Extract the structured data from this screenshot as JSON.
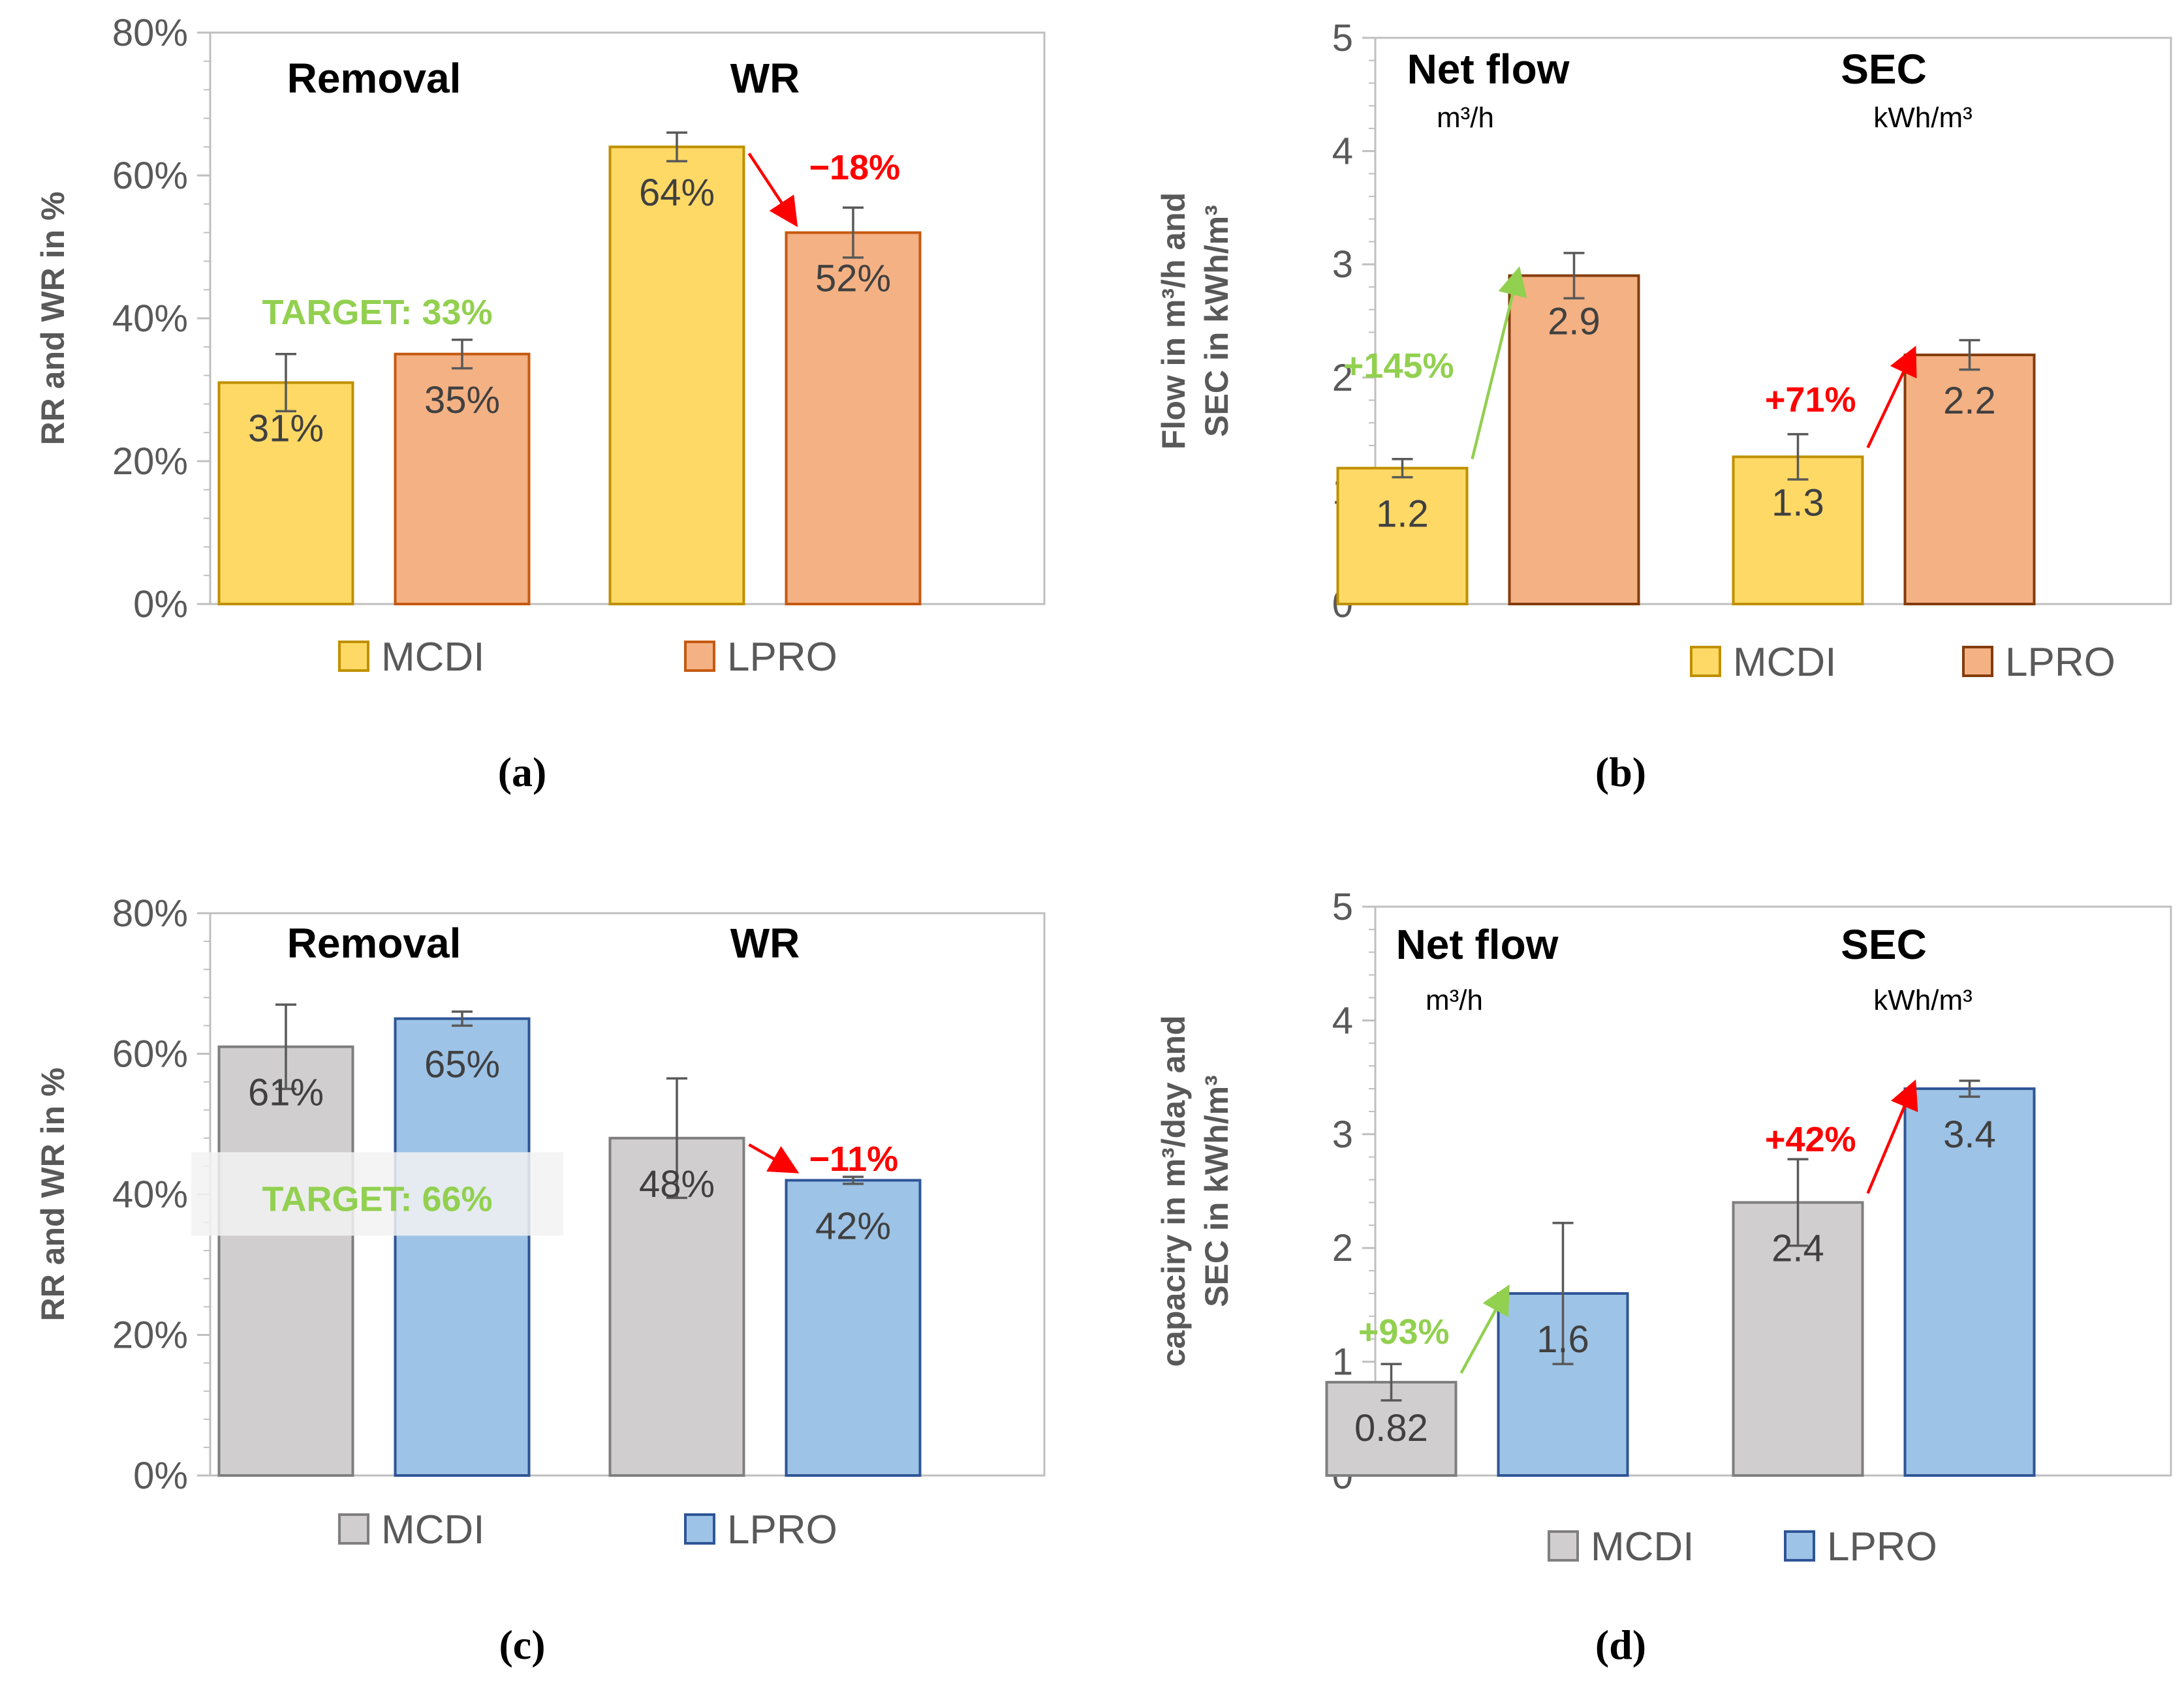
{
  "colors": {
    "mcdi_yellow": "#FFD966",
    "mcdi_yellow_edge": "#BF9000",
    "lpro_orange": "#F4B183",
    "lpro_orange_edge_a": "#C55A11",
    "lpro_orange_edge_b": "#843C0C",
    "mcdi_gray": "#D0CECE",
    "mcdi_gray_edge": "#7F7F7F",
    "lpro_blue": "#9DC3E6",
    "lpro_blue_edge": "#2F5597",
    "green": "#92D050",
    "red": "#FF0000"
  },
  "chart_data": [
    {
      "id": "a",
      "type": "bar",
      "caption": "(a)",
      "ylabel": "RR and WR in %",
      "ylim": [
        0,
        80
      ],
      "yticks": [
        {
          "v": 0,
          "label": "0%"
        },
        {
          "v": 20,
          "label": "20%"
        },
        {
          "v": 40,
          "label": "40%"
        },
        {
          "v": 60,
          "label": "60%"
        },
        {
          "v": 80,
          "label": "80%"
        }
      ],
      "groups": [
        {
          "name": "Removal",
          "unit": "",
          "values": [
            31,
            35
          ],
          "labels": [
            "31%",
            "35%"
          ],
          "err": [
            4,
            2
          ]
        },
        {
          "name": "WR",
          "unit": "",
          "values": [
            64,
            52
          ],
          "labels": [
            "64%",
            "52%"
          ],
          "err": [
            2,
            3.5
          ]
        }
      ],
      "series": [
        {
          "name": "MCDI",
          "color": "#FFD966",
          "edge": "#BF9000"
        },
        {
          "name": "LPRO",
          "color": "#F4B183",
          "edge": "#C55A11"
        }
      ],
      "annotations": [
        {
          "kind": "target",
          "text": "TARGET: 33%",
          "group": 0,
          "y": 41,
          "color": "#92D050"
        },
        {
          "kind": "change",
          "text": "−18%",
          "group": 1,
          "color": "#FF0000"
        }
      ]
    },
    {
      "id": "b",
      "type": "bar",
      "caption": "(b)",
      "ylabel": [
        "Flow in m³/h and",
        "SEC in kWh/m³"
      ],
      "ylim": [
        0,
        5
      ],
      "yticks": [
        {
          "v": 0,
          "label": "0"
        },
        {
          "v": 1,
          "label": "1"
        },
        {
          "v": 2,
          "label": "2"
        },
        {
          "v": 3,
          "label": "3"
        },
        {
          "v": 4,
          "label": "4"
        },
        {
          "v": 5,
          "label": "5"
        }
      ],
      "groups": [
        {
          "name": "Net flow",
          "unit": "m³/h",
          "values": [
            1.2,
            2.9
          ],
          "labels": [
            "1.2",
            "2.9"
          ],
          "err": [
            0.08,
            0.2
          ]
        },
        {
          "name": "SEC",
          "unit": "kWh/m³",
          "values": [
            1.3,
            2.2
          ],
          "labels": [
            "1.3",
            "2.2"
          ],
          "err": [
            0.2,
            0.13
          ]
        }
      ],
      "series": [
        {
          "name": "MCDI",
          "color": "#FFD966",
          "edge": "#BF9000"
        },
        {
          "name": "LPRO",
          "color": "#F4B183",
          "edge": "#843C0C"
        }
      ],
      "annotations": [
        {
          "kind": "change",
          "text": "+145%",
          "group": 0,
          "color": "#92D050"
        },
        {
          "kind": "change",
          "text": "+71%",
          "group": 1,
          "color": "#FF0000"
        }
      ]
    },
    {
      "id": "c",
      "type": "bar",
      "caption": "(c)",
      "ylabel": "RR and WR in %",
      "ylim": [
        0,
        80
      ],
      "yticks": [
        {
          "v": 0,
          "label": "0%"
        },
        {
          "v": 20,
          "label": "20%"
        },
        {
          "v": 40,
          "label": "40%"
        },
        {
          "v": 60,
          "label": "60%"
        },
        {
          "v": 80,
          "label": "80%"
        }
      ],
      "groups": [
        {
          "name": "Removal",
          "unit": "",
          "values": [
            61,
            65
          ],
          "labels": [
            "61%",
            "65%"
          ],
          "err": [
            6,
            1
          ]
        },
        {
          "name": "WR",
          "unit": "",
          "values": [
            48,
            42
          ],
          "labels": [
            "48%",
            "42%"
          ],
          "err": [
            8.5,
            0.5
          ]
        }
      ],
      "series": [
        {
          "name": "MCDI",
          "color": "#D0CECE",
          "edge": "#7F7F7F"
        },
        {
          "name": "LPRO",
          "color": "#9DC3E6",
          "edge": "#2F5597"
        }
      ],
      "annotations": [
        {
          "kind": "target",
          "text": "TARGET: 66%",
          "group": 0,
          "y": 39.5,
          "color": "#92D050",
          "boxed": true
        },
        {
          "kind": "change",
          "text": "−11%",
          "group": 1,
          "color": "#FF0000"
        }
      ]
    },
    {
      "id": "d",
      "type": "bar",
      "caption": "(d)",
      "ylabel": [
        "capaciry in m³/day and",
        "SEC in kWh/m³"
      ],
      "ylim": [
        0,
        5
      ],
      "yticks": [
        {
          "v": 0,
          "label": "0"
        },
        {
          "v": 1,
          "label": "1"
        },
        {
          "v": 2,
          "label": "2"
        },
        {
          "v": 3,
          "label": "3"
        },
        {
          "v": 4,
          "label": "4"
        },
        {
          "v": 5,
          "label": "5"
        }
      ],
      "groups": [
        {
          "name": "Net flow",
          "unit": "m³/h",
          "values": [
            0.82,
            1.6
          ],
          "labels": [
            "0.82",
            "1.6"
          ],
          "err": [
            0.16,
            0.62
          ]
        },
        {
          "name": "SEC",
          "unit": "kWh/m³",
          "values": [
            2.4,
            3.4
          ],
          "labels": [
            "2.4",
            "3.4"
          ],
          "err": [
            0.38,
            0.07
          ]
        }
      ],
      "series": [
        {
          "name": "MCDI",
          "color": "#D0CECE",
          "edge": "#7F7F7F"
        },
        {
          "name": "LPRO",
          "color": "#9DC3E6",
          "edge": "#2F5597"
        }
      ],
      "annotations": [
        {
          "kind": "change",
          "text": "+93%",
          "group": 0,
          "color": "#92D050"
        },
        {
          "kind": "change",
          "text": "+42%",
          "group": 1,
          "color": "#FF0000"
        }
      ]
    }
  ]
}
